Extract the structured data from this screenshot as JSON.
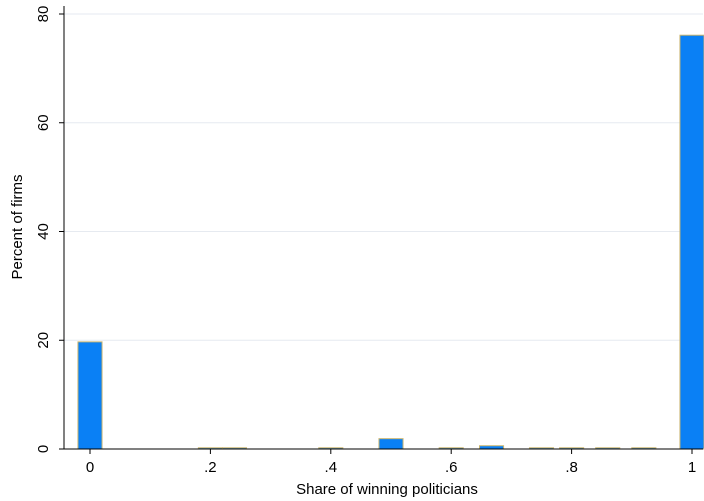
{
  "chart_data": {
    "type": "bar",
    "title": "",
    "xlabel": "Share of winning politicians",
    "ylabel": "Percent of firms",
    "xlim": [
      0,
      1
    ],
    "ylim": [
      0,
      80
    ],
    "x_ticks": [
      {
        "value": 0,
        "label": "0"
      },
      {
        "value": 0.2,
        "label": ".2"
      },
      {
        "value": 0.4,
        "label": ".4"
      },
      {
        "value": 0.6,
        "label": ".6"
      },
      {
        "value": 0.8,
        "label": ".8"
      },
      {
        "value": 1,
        "label": "1"
      }
    ],
    "y_ticks": [
      {
        "value": 0,
        "label": "0"
      },
      {
        "value": 20,
        "label": "20"
      },
      {
        "value": 40,
        "label": "40"
      },
      {
        "value": 60,
        "label": "60"
      },
      {
        "value": 80,
        "label": "80"
      }
    ],
    "grid": true,
    "bin_width": 0.04,
    "bins": [
      {
        "x": 0.0,
        "value": 19.7
      },
      {
        "x": 0.2,
        "value": 0.1
      },
      {
        "x": 0.24,
        "value": 0.1
      },
      {
        "x": 0.4,
        "value": 0.1
      },
      {
        "x": 0.5,
        "value": 1.9
      },
      {
        "x": 0.6,
        "value": 0.1
      },
      {
        "x": 0.667,
        "value": 0.6
      },
      {
        "x": 0.75,
        "value": 0.2
      },
      {
        "x": 0.8,
        "value": 0.1
      },
      {
        "x": 0.86,
        "value": 0.1
      },
      {
        "x": 0.92,
        "value": 0.1
      },
      {
        "x": 1.0,
        "value": 76.1
      }
    ],
    "colors": {
      "bar_fill": "#0a80f5",
      "bar_outline": "#c8b46e",
      "grid": "#e6eaf0",
      "axis": "#000000"
    }
  }
}
